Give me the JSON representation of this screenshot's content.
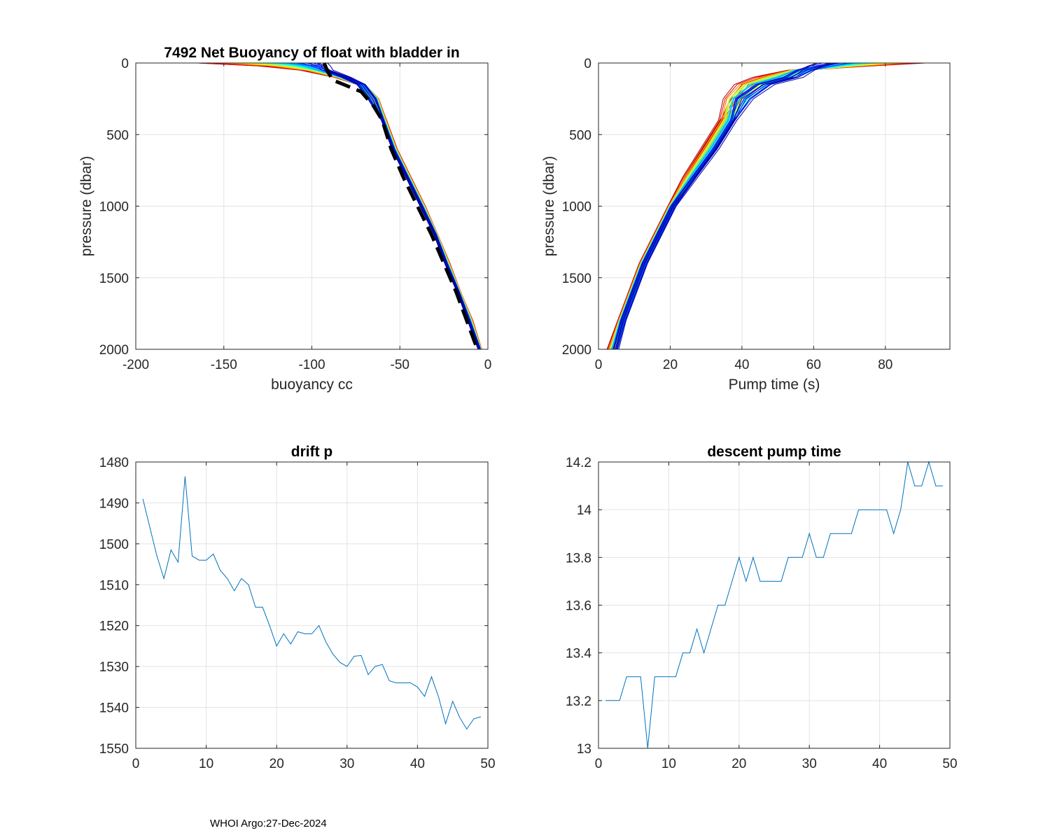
{
  "footer": "WHOI Argo:27-Dec-2024",
  "chart_data": [
    {
      "type": "line",
      "title": "7492 Net Buoyancy of float with bladder in",
      "xlabel": "buoyancy cc",
      "ylabel": "pressure (dbar)",
      "xlim": [
        -200,
        0
      ],
      "ylim": [
        2000,
        0
      ],
      "y_reversed": true,
      "xticks": [
        -200,
        -150,
        -100,
        -50,
        0
      ],
      "yticks": [
        0,
        500,
        1000,
        1500,
        2000
      ],
      "grid": true,
      "colormap": "jet",
      "series_count": 49,
      "series_note": "one colored profile per cycle (red = early, blue = late)",
      "profile_pressure": [
        0,
        20,
        50,
        100,
        150,
        250,
        400,
        600,
        800,
        1000,
        1200,
        1400,
        1600,
        1800,
        2000
      ],
      "profile_buoyancy_first": [
        -165,
        -130,
        -105,
        -85,
        -72,
        -64,
        -58,
        -52,
        -44,
        -36,
        -29,
        -22,
        -16,
        -9,
        -4
      ],
      "profile_buoyancy_last": [
        -92,
        -91,
        -90,
        -80,
        -72,
        -66,
        -60,
        -54,
        -46,
        -38,
        -30,
        -24,
        -17,
        -11,
        -5
      ],
      "reference_line": {
        "style": "black dashed",
        "pressure": [
          0,
          60,
          120,
          160,
          200,
          300,
          400,
          600,
          800,
          1000,
          1200,
          1400,
          1600,
          1800,
          2000
        ],
        "buoyancy": [
          -93,
          -91,
          -88,
          -80,
          -72,
          -65,
          -60,
          -55,
          -48,
          -40,
          -32,
          -25,
          -18,
          -12,
          -6
        ]
      }
    },
    {
      "type": "line",
      "title": "",
      "xlabel": "Pump time (s)",
      "ylabel": "pressure (dbar)",
      "xlim": [
        0,
        98
      ],
      "ylim": [
        2000,
        0
      ],
      "y_reversed": true,
      "xticks": [
        0,
        20,
        40,
        60,
        80
      ],
      "yticks": [
        0,
        500,
        1000,
        1500,
        2000
      ],
      "grid": true,
      "colormap": "jet",
      "series_count": 49,
      "profile_pressure": [
        0,
        20,
        50,
        100,
        150,
        250,
        400,
        600,
        800,
        1000,
        1200,
        1400,
        1600,
        1800,
        2000
      ],
      "profile_pumptime_first": [
        90,
        75,
        55,
        45,
        40,
        37,
        34,
        29,
        24,
        20,
        16,
        12,
        9,
        6,
        3
      ],
      "profile_pumptime_last": [
        62,
        60,
        58,
        55,
        47,
        41,
        38,
        33,
        27,
        21,
        17,
        13,
        10,
        7,
        5
      ]
    },
    {
      "type": "line",
      "title": "drift p",
      "xlabel": "",
      "ylabel": "",
      "xlim": [
        0,
        50
      ],
      "ylim": [
        1550,
        1480
      ],
      "y_reversed": true,
      "xticks": [
        0,
        10,
        20,
        30,
        40,
        50
      ],
      "yticks": [
        1480,
        1490,
        1500,
        1510,
        1520,
        1530,
        1540,
        1550
      ],
      "grid": true,
      "x": [
        1,
        2,
        3,
        4,
        5,
        6,
        7,
        8,
        9,
        10,
        11,
        12,
        13,
        14,
        15,
        16,
        17,
        18,
        19,
        20,
        21,
        22,
        23,
        24,
        25,
        26,
        27,
        28,
        29,
        30,
        31,
        32,
        33,
        34,
        35,
        36,
        37,
        38,
        39,
        40,
        41,
        42,
        43,
        44,
        45,
        46,
        47,
        48,
        49
      ],
      "values": [
        1489,
        1496,
        1503,
        1508.5,
        1501.5,
        1504.5,
        1483.5,
        1503,
        1504,
        1504,
        1502.5,
        1506.5,
        1508.5,
        1511.5,
        1508.5,
        1510,
        1515.5,
        1515.5,
        1520,
        1525,
        1522,
        1524.5,
        1521.5,
        1522,
        1522,
        1520,
        1524,
        1527,
        1529,
        1530,
        1527.5,
        1527.3,
        1532,
        1530,
        1529.5,
        1533.5,
        1534,
        1534,
        1534,
        1535,
        1537.3,
        1532.5,
        1537.5,
        1544,
        1538.5,
        1542.5,
        1545.3,
        1542.8,
        1542.3
      ]
    },
    {
      "type": "line",
      "title": "descent pump time",
      "xlabel": "",
      "ylabel": "",
      "xlim": [
        0,
        50
      ],
      "ylim": [
        13,
        14.2
      ],
      "xticks": [
        0,
        10,
        20,
        30,
        40,
        50
      ],
      "yticks": [
        13,
        13.2,
        13.4,
        13.6,
        13.8,
        14,
        14.2
      ],
      "ytick_labels": [
        "13",
        "13.2",
        "13.4",
        "13.6",
        "13.8",
        "14",
        "14.2"
      ],
      "grid": true,
      "x": [
        1,
        2,
        3,
        4,
        5,
        6,
        7,
        8,
        9,
        10,
        11,
        12,
        13,
        14,
        15,
        16,
        17,
        18,
        19,
        20,
        21,
        22,
        23,
        24,
        25,
        26,
        27,
        28,
        29,
        30,
        31,
        32,
        33,
        34,
        35,
        36,
        37,
        38,
        39,
        40,
        41,
        42,
        43,
        44,
        45,
        46,
        47,
        48,
        49
      ],
      "values": [
        13.2,
        13.2,
        13.2,
        13.3,
        13.3,
        13.3,
        13.0,
        13.3,
        13.3,
        13.3,
        13.3,
        13.4,
        13.4,
        13.5,
        13.4,
        13.5,
        13.6,
        13.6,
        13.7,
        13.8,
        13.7,
        13.8,
        13.7,
        13.7,
        13.7,
        13.7,
        13.8,
        13.8,
        13.8,
        13.9,
        13.8,
        13.8,
        13.9,
        13.9,
        13.9,
        13.9,
        14.0,
        14.0,
        14.0,
        14.0,
        14.0,
        13.9,
        14.0,
        14.2,
        14.1,
        14.1,
        14.2,
        14.1,
        14.1
      ]
    }
  ]
}
